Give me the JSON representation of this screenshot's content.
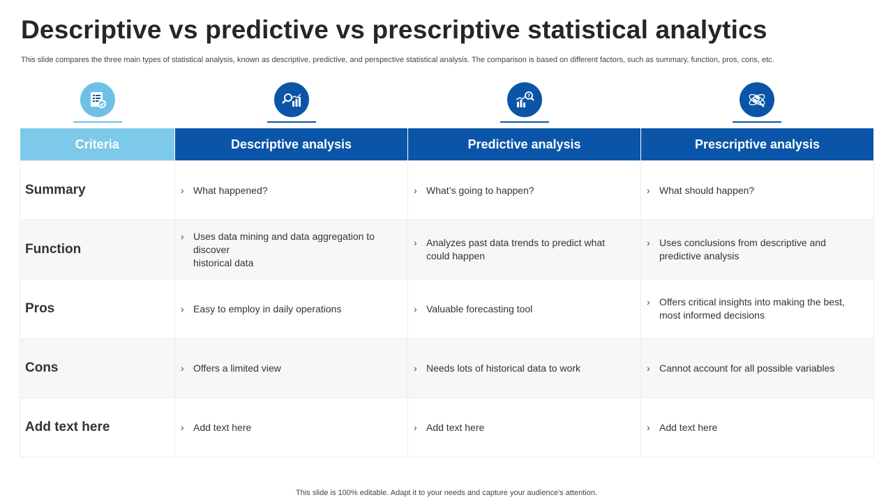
{
  "title": "Descriptive vs predictive vs prescriptive statistical analytics",
  "subtitle": "This slide compares the three main types of statistical analysis, known as descriptive, predictive, and perspective statistical analysis. The comparison is based on different factors, such as summary, function, pros, cons, etc.",
  "icons": [
    {
      "name": "report-checklist-icon",
      "color": "#6ec1e4"
    },
    {
      "name": "magnifier-chart-icon",
      "color": "#0b55a8"
    },
    {
      "name": "bar-chart-question-icon",
      "color": "#0b55a8"
    },
    {
      "name": "brain-magnifier-icon",
      "color": "#0b55a8"
    }
  ],
  "table": {
    "headers": [
      "Criteria",
      "Descriptive analysis",
      "Predictive analysis",
      "Prescriptive analysis"
    ],
    "bullet": "›",
    "rows": [
      {
        "label": "Summary",
        "cells": [
          "What happened?",
          "What’s going to happen?",
          "What should happen?"
        ]
      },
      {
        "label": "Function",
        "cells": [
          "Uses data mining and data aggregation to discover\nhistorical data",
          "Analyzes past data trends to predict what could happen",
          "Uses conclusions from descriptive and predictive analysis"
        ]
      },
      {
        "label": "Pros",
        "cells": [
          "Easy to employ in daily operations",
          "Valuable forecasting tool",
          "Offers critical insights into making the best, most informed decisions"
        ]
      },
      {
        "label": "Cons",
        "cells": [
          "Offers a limited view",
          "Needs lots of historical data to work",
          "Cannot account for all possible variables"
        ]
      },
      {
        "label": "Add text here",
        "cells": [
          "Add text here",
          "Add text here",
          "Add text here"
        ]
      }
    ]
  },
  "footer": "This slide is 100% editable. Adapt it to your needs and capture your audience's attention.",
  "colors": {
    "accent_light": "#7dc9ea",
    "accent_dark": "#0b55a8"
  }
}
